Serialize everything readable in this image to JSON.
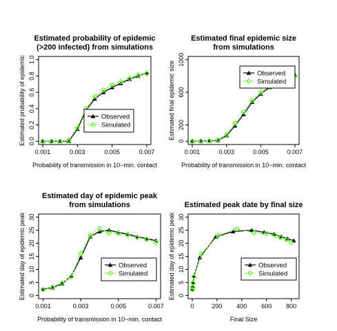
{
  "colors": {
    "observed": "#000000",
    "simulated": "#66ff33",
    "frame": "#000000"
  },
  "chart_data": [
    {
      "type": "line",
      "title": [
        "Estimated probability of epidemic",
        "(>200 infected) from simulations"
      ],
      "xlabel": "Probability of transmission in 10−min. contact",
      "ylabel": "Estimated probability of epidemic",
      "xlim": [
        0.001,
        0.007
      ],
      "ylim": [
        0,
        1.0
      ],
      "xticks": [
        0.001,
        0.003,
        0.005,
        0.007
      ],
      "xtick_labels": [
        "0.001",
        "0.003",
        "0.005",
        "0.007"
      ],
      "yticks": [
        0,
        0.2,
        0.4,
        0.6,
        0.8,
        1.0
      ],
      "ytick_labels": [
        "0.0",
        "0.2",
        "0.4",
        "0.6",
        "0.8",
        "1.0"
      ],
      "legend": [
        "Observed",
        "Simulated"
      ],
      "legend_position": "center-right",
      "series": [
        {
          "name": "Observed",
          "x": [
            0.001,
            0.0015,
            0.002,
            0.0025,
            0.003,
            0.0035,
            0.004,
            0.0045,
            0.005,
            0.0055,
            0.006,
            0.0065,
            0.007
          ],
          "y": [
            0,
            0,
            0,
            0,
            0.15,
            0.38,
            0.52,
            0.6,
            0.66,
            0.71,
            0.76,
            0.8,
            0.84
          ]
        },
        {
          "name": "Simulated",
          "x": [
            0.001,
            0.0015,
            0.002,
            0.0025,
            0.003,
            0.0035,
            0.004,
            0.0045,
            0.005,
            0.0055,
            0.006,
            0.0065,
            0.007
          ],
          "y": [
            0,
            0,
            0,
            0.01,
            0.17,
            0.4,
            0.55,
            0.63,
            0.69,
            0.73,
            0.77,
            0.81,
            0.83
          ]
        }
      ]
    },
    {
      "type": "line",
      "title": [
        "Estimated final epidemic size",
        "from simulations"
      ],
      "xlabel": "Probability of transmission in 10−min. contact",
      "ylabel": "Estimated final epidemic size",
      "xlim": [
        0.001,
        0.007
      ],
      "ylim": [
        0,
        1000
      ],
      "xticks": [
        0.001,
        0.003,
        0.005,
        0.007
      ],
      "xtick_labels": [
        "0.001",
        "0.003",
        "0.005",
        "0.007"
      ],
      "yticks": [
        0,
        200,
        600,
        1000
      ],
      "ytick_labels": [
        "0",
        "200",
        "600",
        "1000"
      ],
      "legend": [
        "Observed",
        "Simulated"
      ],
      "legend_position": "top-right",
      "series": [
        {
          "name": "Observed",
          "x": [
            0.001,
            0.0015,
            0.002,
            0.0025,
            0.003,
            0.0035,
            0.004,
            0.0045,
            0.005,
            0.0055,
            0.006,
            0.0065,
            0.007
          ],
          "y": [
            0,
            3,
            5,
            10,
            70,
            190,
            330,
            480,
            580,
            660,
            720,
            770,
            820
          ]
        },
        {
          "name": "Simulated",
          "x": [
            0.001,
            0.0015,
            0.002,
            0.0025,
            0.003,
            0.0035,
            0.004,
            0.0045,
            0.005,
            0.0055,
            0.006,
            0.0065,
            0.007
          ],
          "y": [
            0,
            2,
            5,
            15,
            80,
            220,
            360,
            500,
            600,
            670,
            710,
            760,
            800
          ]
        }
      ]
    },
    {
      "type": "line",
      "title": [
        "Estimated day of epidemic peak",
        "from simulations"
      ],
      "xlabel": "Probability of transmission in 10−min. contact",
      "ylabel": "Estimated day of epidemic peak",
      "xlim": [
        0.001,
        0.007
      ],
      "ylim": [
        0,
        30
      ],
      "xticks": [
        0.001,
        0.003,
        0.005,
        0.007
      ],
      "xtick_labels": [
        "0.001",
        "0.003",
        "0.005",
        "0.007"
      ],
      "yticks": [
        0,
        5,
        10,
        15,
        20,
        25,
        30
      ],
      "ytick_labels": [
        "0",
        "5",
        "10",
        "15",
        "20",
        "25",
        "30"
      ],
      "legend": [
        "Observed",
        "Simulated"
      ],
      "legend_position": "bottom-right",
      "series": [
        {
          "name": "Observed",
          "x": [
            0.001,
            0.0015,
            0.002,
            0.0025,
            0.003,
            0.0035,
            0.004,
            0.0045,
            0.005,
            0.0055,
            0.006,
            0.0065,
            0.007
          ],
          "y": [
            2.5,
            3,
            4.5,
            7.5,
            14.5,
            22.5,
            24.5,
            25,
            24.2,
            23.5,
            22.5,
            21.8,
            21
          ]
        },
        {
          "name": "Simulated",
          "x": [
            0.001,
            0.0015,
            0.002,
            0.0025,
            0.003,
            0.0035,
            0.004,
            0.0045,
            0.005,
            0.0055,
            0.006,
            0.0065,
            0.007
          ],
          "y": [
            2.3,
            3.2,
            4.8,
            7.2,
            16,
            23,
            25.5,
            24,
            23.8,
            23,
            22.2,
            21.5,
            20.3
          ]
        }
      ]
    },
    {
      "type": "line",
      "title": [
        "Estimated peak date by final size"
      ],
      "xlabel": "Final Size",
      "ylabel": "Estimated day of epidemic peak",
      "xlim": [
        0,
        830
      ],
      "ylim": [
        0,
        30
      ],
      "xticks": [
        0,
        200,
        400,
        600,
        800
      ],
      "xtick_labels": [
        "0",
        "200",
        "400",
        "600",
        "800"
      ],
      "yticks": [
        0,
        5,
        10,
        15,
        20,
        25,
        30
      ],
      "ytick_labels": [
        "0",
        "5",
        "10",
        "15",
        "20",
        "25",
        "30"
      ],
      "legend": [
        "Observed",
        "Simulated"
      ],
      "legend_position": "bottom-right",
      "series": [
        {
          "name": "Observed",
          "x": [
            2,
            4,
            8,
            15,
            60,
            190,
            330,
            480,
            580,
            660,
            720,
            770,
            820
          ],
          "y": [
            2.5,
            3.5,
            5,
            7.5,
            14.5,
            22.5,
            24.5,
            25,
            24.2,
            23.5,
            22.5,
            21.8,
            21
          ]
        },
        {
          "name": "Simulated",
          "x": [
            1,
            3,
            6,
            12,
            75,
            210,
            360,
            500,
            600,
            670,
            710,
            760,
            800
          ],
          "y": [
            2.3,
            3.2,
            4.8,
            7.2,
            16,
            23,
            25.5,
            24,
            23.8,
            23,
            22.2,
            21.5,
            20.3
          ]
        }
      ]
    }
  ]
}
